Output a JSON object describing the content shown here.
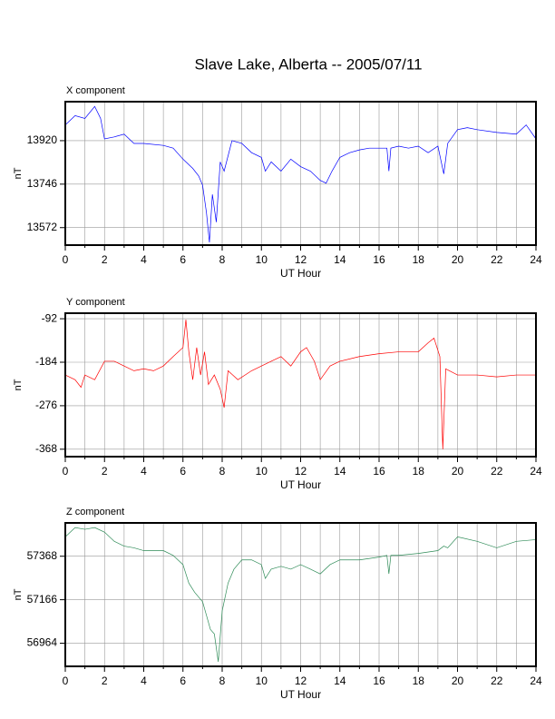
{
  "title": "Slave Lake, Alberta -- 2005/07/11",
  "chart_data": [
    {
      "type": "line",
      "title": "X component",
      "xlabel": "UT Hour",
      "ylabel": "nT",
      "color": "#0000ff",
      "xlim": [
        0,
        24
      ],
      "xticks": [
        0,
        2,
        4,
        6,
        8,
        10,
        12,
        14,
        16,
        18,
        20,
        22,
        24
      ],
      "x_minor_ticks": [
        1,
        3,
        5,
        7,
        9,
        11,
        13,
        15,
        17,
        19,
        21,
        23
      ],
      "ylim": [
        13502,
        14076
      ],
      "yticks": [
        13572,
        13746,
        13920
      ],
      "grid": true,
      "x": [
        0,
        0.5,
        1,
        1.5,
        1.8,
        2,
        2.5,
        3,
        3.5,
        4,
        5,
        5.5,
        6,
        6.5,
        6.8,
        7,
        7.2,
        7.35,
        7.5,
        7.7,
        7.9,
        8.1,
        8.5,
        9,
        9.5,
        10,
        10.2,
        10.5,
        11,
        11.5,
        12,
        12.5,
        13,
        13.3,
        13.6,
        14,
        14.5,
        15,
        15.5,
        16,
        16.4,
        16.5,
        16.6,
        17,
        17.5,
        18,
        18.5,
        19,
        19.3,
        19.5,
        20,
        20.5,
        21,
        22,
        23,
        23.5,
        24
      ],
      "values": [
        13983,
        14020,
        14009,
        14057,
        14009,
        13927,
        13935,
        13946,
        13909,
        13909,
        13901,
        13890,
        13846,
        13809,
        13779,
        13742,
        13631,
        13513,
        13705,
        13594,
        13835,
        13798,
        13920,
        13909,
        13872,
        13853,
        13798,
        13835,
        13798,
        13846,
        13816,
        13798,
        13761,
        13750,
        13798,
        13853,
        13872,
        13883,
        13890,
        13890,
        13890,
        13798,
        13890,
        13898,
        13890,
        13898,
        13872,
        13898,
        13787,
        13909,
        13964,
        13972,
        13964,
        13953,
        13946,
        13983,
        13927
      ]
    },
    {
      "type": "line",
      "title": "Y component",
      "xlabel": "UT Hour",
      "ylabel": "nT",
      "color": "#ff0000",
      "xlim": [
        0,
        24
      ],
      "xticks": [
        0,
        2,
        4,
        6,
        8,
        10,
        12,
        14,
        16,
        18,
        20,
        22,
        24
      ],
      "x_minor_ticks": [
        1,
        3,
        5,
        7,
        9,
        11,
        13,
        15,
        17,
        19,
        21,
        23
      ],
      "ylim": [
        -383.7,
        -80.3
      ],
      "yticks": [
        -368,
        -276,
        -184,
        -92
      ],
      "grid": true,
      "x": [
        0,
        0.5,
        0.8,
        1,
        1.5,
        2,
        2.5,
        3,
        3.5,
        4,
        4.5,
        5,
        5.5,
        6,
        6.15,
        6.3,
        6.5,
        6.7,
        6.9,
        7.1,
        7.3,
        7.6,
        7.9,
        8.1,
        8.3,
        8.8,
        9.5,
        10,
        10.5,
        11,
        11.5,
        12,
        12.3,
        12.7,
        13,
        13.5,
        14,
        15,
        16,
        17,
        18,
        18.5,
        18.8,
        19.1,
        19.25,
        19.4,
        20,
        21,
        22,
        23,
        24
      ],
      "values": [
        -211,
        -221,
        -237,
        -211,
        -221,
        -182,
        -182,
        -192,
        -202,
        -198,
        -202,
        -192,
        -172,
        -153,
        -94,
        -162,
        -221,
        -153,
        -211,
        -162,
        -231,
        -211,
        -241,
        -280,
        -202,
        -221,
        -202,
        -192,
        -182,
        -172,
        -192,
        -162,
        -153,
        -182,
        -221,
        -192,
        -182,
        -172,
        -166,
        -162,
        -162,
        -143,
        -133,
        -172,
        -368,
        -198,
        -211,
        -211,
        -215,
        -211,
        -211
      ]
    },
    {
      "type": "line",
      "title": "Z component",
      "xlabel": "UT Hour",
      "ylabel": "nT",
      "color": "#2e8b57",
      "xlim": [
        0,
        24
      ],
      "xticks": [
        0,
        2,
        4,
        6,
        8,
        10,
        12,
        14,
        16,
        18,
        20,
        22,
        24
      ],
      "x_minor_ticks": [
        1,
        3,
        5,
        7,
        9,
        11,
        13,
        15,
        17,
        19,
        21,
        23
      ],
      "ylim": [
        56856.6,
        57522.7
      ],
      "yticks": [
        56964,
        57166,
        57368
      ],
      "grid": true,
      "x": [
        0,
        0.5,
        1,
        1.5,
        2,
        2.5,
        3,
        3.5,
        4,
        5,
        5.5,
        6,
        6.3,
        6.6,
        7,
        7.2,
        7.4,
        7.6,
        7.8,
        8,
        8.3,
        8.6,
        9,
        9.5,
        10,
        10.2,
        10.5,
        11,
        11.5,
        12,
        12.5,
        13,
        13.5,
        14,
        15,
        16,
        16.4,
        16.5,
        16.6,
        17,
        18,
        19,
        19.3,
        19.5,
        20,
        21,
        22,
        23,
        24
      ],
      "values": [
        57458,
        57501,
        57493,
        57501,
        57480,
        57437,
        57415,
        57407,
        57394,
        57394,
        57372,
        57329,
        57243,
        57200,
        57157,
        57093,
        57028,
        57007,
        56878,
        57114,
        57243,
        57308,
        57351,
        57351,
        57329,
        57265,
        57308,
        57321,
        57308,
        57329,
        57308,
        57286,
        57329,
        57351,
        57351,
        57364,
        57372,
        57286,
        57372,
        57372,
        57381,
        57394,
        57415,
        57407,
        57458,
        57437,
        57407,
        57437,
        57445
      ]
    }
  ]
}
